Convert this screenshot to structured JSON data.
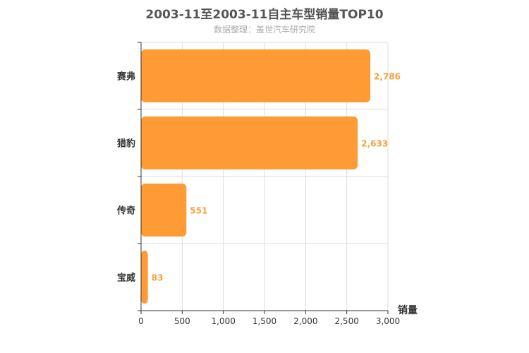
{
  "title": "2003-11至2003-11自主车型销量TOP10",
  "subtitle": "数据整理：盖世汽车研究院",
  "colors": {
    "bar": "#fe9b34",
    "value_label": "#f4a13a",
    "grid": "#dddddd",
    "axis": "#333333"
  },
  "chart_data": {
    "type": "bar",
    "orientation": "horizontal",
    "categories": [
      "赛弗",
      "猎豹",
      "传奇",
      "宝威"
    ],
    "values": [
      2786,
      2633,
      551,
      83
    ],
    "value_labels": [
      "2,786",
      "2,633",
      "551",
      "83"
    ],
    "xlabel": "销量",
    "ylabel": "",
    "xlim": [
      0,
      3000
    ],
    "xticks": [
      0,
      500,
      1000,
      1500,
      2000,
      2500,
      3000
    ],
    "xtick_labels": [
      "0",
      "500",
      "1,000",
      "1,500",
      "2,000",
      "2,500",
      "3,000"
    ],
    "grid": true,
    "legend": "none"
  }
}
